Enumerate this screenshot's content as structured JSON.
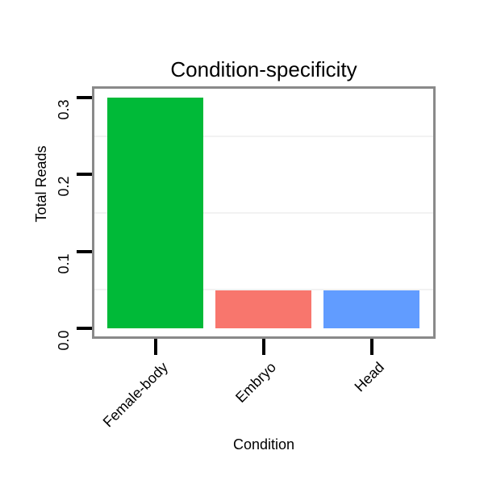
{
  "chart_data": {
    "type": "bar",
    "title": "Condition-specificity",
    "xlabel": "Condition",
    "ylabel": "Total Reads",
    "categories": [
      "Female-body",
      "Embryo",
      "Head"
    ],
    "values": [
      0.3,
      0.049,
      0.049
    ],
    "bar_colors": [
      "#00BA38",
      "#F8766D",
      "#619CFF"
    ],
    "ylim": [
      -0.01,
      0.31
    ],
    "ytick_values": [
      0.0,
      0.1,
      0.2,
      0.3
    ],
    "ytick_labels": [
      "0.0",
      "0.1",
      "0.2",
      "0.3"
    ],
    "minor_gridlines": [
      0.05,
      0.15,
      0.25
    ],
    "grid": "faint horizontal minor gridlines only",
    "legend": "none",
    "x_label_rotation_deg": 45,
    "y_label_rotation_deg": 90
  },
  "styles": {
    "background": "#ffffff",
    "panel_border_color": "#8a8a8a",
    "tick_color": "#000000",
    "text_color": "#000000",
    "gridline_color": "#f2f2f2"
  }
}
